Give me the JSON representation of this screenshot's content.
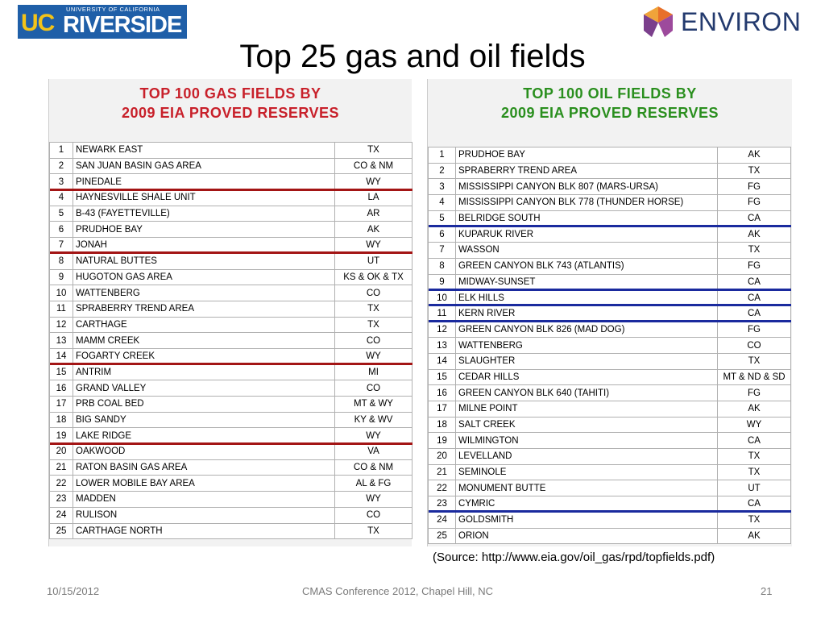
{
  "logos": {
    "ucr": {
      "small_text": "UNIVERSITY OF CALIFORNIA",
      "uc": "UC",
      "name": "RIVERSIDE"
    },
    "environ": {
      "name": "ENVIRON"
    }
  },
  "title": "Top 25 gas and oil fields",
  "gas_panel": {
    "heading_line1": "TOP 100 GAS FIELDS BY",
    "heading_line2": "2009 EIA PROVED RESERVES",
    "rows": [
      {
        "rank": "1",
        "field": "NEWARK EAST",
        "state": "TX"
      },
      {
        "rank": "2",
        "field": "SAN JUAN BASIN GAS AREA",
        "state": "CO & NM"
      },
      {
        "rank": "3",
        "field": "PINEDALE",
        "state": "WY"
      },
      {
        "rank": "4",
        "field": "HAYNESVILLE SHALE UNIT",
        "state": "LA"
      },
      {
        "rank": "5",
        "field": "B-43 (FAYETTEVILLE)",
        "state": "AR"
      },
      {
        "rank": "6",
        "field": "PRUDHOE BAY",
        "state": "AK"
      },
      {
        "rank": "7",
        "field": "JONAH",
        "state": "WY"
      },
      {
        "rank": "8",
        "field": "NATURAL BUTTES",
        "state": "UT"
      },
      {
        "rank": "9",
        "field": "HUGOTON GAS AREA",
        "state": "KS & OK & TX"
      },
      {
        "rank": "10",
        "field": "WATTENBERG",
        "state": "CO"
      },
      {
        "rank": "11",
        "field": "SPRABERRY TREND AREA",
        "state": "TX"
      },
      {
        "rank": "12",
        "field": "CARTHAGE",
        "state": "TX"
      },
      {
        "rank": "13",
        "field": "MAMM CREEK",
        "state": "CO"
      },
      {
        "rank": "14",
        "field": "FOGARTY CREEK",
        "state": "WY"
      },
      {
        "rank": "15",
        "field": "ANTRIM",
        "state": "MI"
      },
      {
        "rank": "16",
        "field": "GRAND VALLEY",
        "state": "CO"
      },
      {
        "rank": "17",
        "field": "PRB COAL BED",
        "state": "MT & WY"
      },
      {
        "rank": "18",
        "field": "BIG SANDY",
        "state": "KY & WV"
      },
      {
        "rank": "19",
        "field": "LAKE RIDGE",
        "state": "WY"
      },
      {
        "rank": "20",
        "field": "OAKWOOD",
        "state": "VA"
      },
      {
        "rank": "21",
        "field": "RATON BASIN GAS AREA",
        "state": "CO & NM"
      },
      {
        "rank": "22",
        "field": "LOWER MOBILE BAY AREA",
        "state": "AL & FG"
      },
      {
        "rank": "23",
        "field": "MADDEN",
        "state": "WY"
      },
      {
        "rank": "24",
        "field": "RULISON",
        "state": "CO"
      },
      {
        "rank": "25",
        "field": "CARTHAGE NORTH",
        "state": "TX"
      }
    ],
    "highlighted_ranks": [
      "3",
      "7",
      "14",
      "19"
    ],
    "highlight_color": "#a31515"
  },
  "oil_panel": {
    "heading_line1": "TOP 100 OIL FIELDS BY",
    "heading_line2": "2009 EIA PROVED RESERVES",
    "rows": [
      {
        "rank": "1",
        "field": "PRUDHOE BAY",
        "state": "AK"
      },
      {
        "rank": "2",
        "field": "SPRABERRY TREND AREA",
        "state": "TX"
      },
      {
        "rank": "3",
        "field": "MISSISSIPPI CANYON BLK 807 (MARS-URSA)",
        "state": "FG"
      },
      {
        "rank": "4",
        "field": "MISSISSIPPI CANYON BLK 778 (THUNDER HORSE)",
        "state": "FG"
      },
      {
        "rank": "5",
        "field": "BELRIDGE SOUTH",
        "state": "CA"
      },
      {
        "rank": "6",
        "field": "KUPARUK RIVER",
        "state": "AK"
      },
      {
        "rank": "7",
        "field": "WASSON",
        "state": "TX"
      },
      {
        "rank": "8",
        "field": "GREEN CANYON BLK 743 (ATLANTIS)",
        "state": "FG"
      },
      {
        "rank": "9",
        "field": "MIDWAY-SUNSET",
        "state": "CA"
      },
      {
        "rank": "10",
        "field": "ELK HILLS",
        "state": "CA"
      },
      {
        "rank": "11",
        "field": "KERN RIVER",
        "state": "CA"
      },
      {
        "rank": "12",
        "field": "GREEN CANYON BLK 826 (MAD DOG)",
        "state": "FG"
      },
      {
        "rank": "13",
        "field": "WATTENBERG",
        "state": "CO"
      },
      {
        "rank": "14",
        "field": "SLAUGHTER",
        "state": "TX"
      },
      {
        "rank": "15",
        "field": "CEDAR HILLS",
        "state": "MT & ND & SD"
      },
      {
        "rank": "16",
        "field": "GREEN CANYON BLK 640 (TAHITI)",
        "state": "FG"
      },
      {
        "rank": "17",
        "field": "MILNE POINT",
        "state": "AK"
      },
      {
        "rank": "18",
        "field": "SALT CREEK",
        "state": "WY"
      },
      {
        "rank": "19",
        "field": "WILMINGTON",
        "state": "CA"
      },
      {
        "rank": "20",
        "field": "LEVELLAND",
        "state": "TX"
      },
      {
        "rank": "21",
        "field": "SEMINOLE",
        "state": "TX"
      },
      {
        "rank": "22",
        "field": "MONUMENT BUTTE",
        "state": "UT"
      },
      {
        "rank": "23",
        "field": "CYMRIC",
        "state": "CA"
      },
      {
        "rank": "24",
        "field": "GOLDSMITH",
        "state": "TX"
      },
      {
        "rank": "25",
        "field": "ORION",
        "state": "AK"
      }
    ],
    "highlighted_ranks": [
      "5",
      "9",
      "10",
      "11",
      "23"
    ],
    "highlight_color": "#1a2a9e"
  },
  "source": "(Source: http://www.eia.gov/oil_gas/rpd/topfields.pdf)",
  "footer": {
    "date": "10/15/2012",
    "event": "CMAS Conference 2012, Chapel Hill, NC",
    "page": "21"
  }
}
